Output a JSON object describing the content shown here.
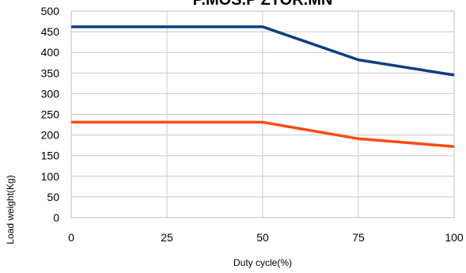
{
  "chart_data": {
    "type": "line",
    "title": "P.MOS.P ZTOR.MN",
    "xlabel": "Duty cycle(%)",
    "ylabel": "Load weight(Kg)",
    "x": [
      0,
      25,
      50,
      75,
      100
    ],
    "x_ticks": [
      "0",
      "25",
      "50",
      "75",
      "100"
    ],
    "y_ticks": [
      "0",
      "50",
      "100",
      "150",
      "200",
      "250",
      "300",
      "350",
      "400",
      "450",
      "500"
    ],
    "xlim": [
      0,
      100
    ],
    "ylim": [
      0,
      500
    ],
    "grid": true,
    "series": [
      {
        "values": [
          462,
          462,
          462,
          382,
          345
        ],
        "color": "#0f3d82"
      },
      {
        "values": [
          231,
          231,
          231,
          191,
          172
        ],
        "color": "#ff4a12"
      }
    ]
  }
}
